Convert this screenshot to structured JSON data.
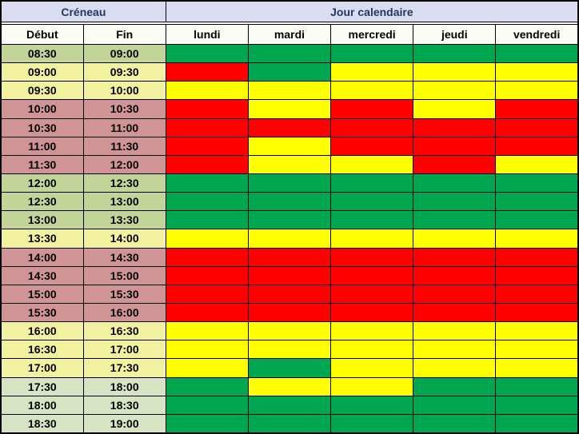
{
  "header": {
    "creneau": "Créneau",
    "jour": "Jour calendaire",
    "debut": "Début",
    "fin": "Fin"
  },
  "palette": {
    "green": "#00a650",
    "yellow": "#ffff00",
    "red": "#ff0000",
    "slot_green": "#c2d498",
    "slot_pale_green": "#d7e4c3",
    "slot_yellow": "#f2f1a0",
    "slot_pink": "#d09494",
    "header_bg": "#dadcf2",
    "header_text": "#1f3864",
    "subheader_bg": "#fbfdf5",
    "grid_line": "#000000"
  },
  "chart_data": {
    "type": "heatmap",
    "title": "Jour calendaire / Créneau availability grid",
    "x_labels": [
      "lundi",
      "mardi",
      "mercredi",
      "jeudi",
      "vendredi"
    ],
    "y_axis": "time slots of 30 minutes from 08:30 to 19:00",
    "legend_position": "none",
    "grid": true,
    "rows": [
      {
        "start": "08:30",
        "end": "09:00",
        "slot": "green",
        "days": [
          "green",
          "green",
          "green",
          "green",
          "green"
        ]
      },
      {
        "start": "09:00",
        "end": "09:30",
        "slot": "yellow",
        "days": [
          "red",
          "green",
          "yellow",
          "yellow",
          "yellow"
        ]
      },
      {
        "start": "09:30",
        "end": "10:00",
        "slot": "yellow",
        "days": [
          "yellow",
          "yellow",
          "yellow",
          "yellow",
          "yellow"
        ]
      },
      {
        "start": "10:00",
        "end": "10:30",
        "slot": "pink",
        "days": [
          "red",
          "yellow",
          "red",
          "yellow",
          "red"
        ]
      },
      {
        "start": "10:30",
        "end": "11:00",
        "slot": "pink",
        "days": [
          "red",
          "red",
          "red",
          "red",
          "red"
        ]
      },
      {
        "start": "11:00",
        "end": "11:30",
        "slot": "pink",
        "days": [
          "red",
          "yellow",
          "red",
          "red",
          "red"
        ]
      },
      {
        "start": "11:30",
        "end": "12:00",
        "slot": "pink",
        "days": [
          "red",
          "yellow",
          "yellow",
          "red",
          "yellow"
        ]
      },
      {
        "start": "12:00",
        "end": "12:30",
        "slot": "green",
        "days": [
          "green",
          "green",
          "green",
          "green",
          "green"
        ]
      },
      {
        "start": "12:30",
        "end": "13:00",
        "slot": "green",
        "days": [
          "green",
          "green",
          "green",
          "green",
          "green"
        ]
      },
      {
        "start": "13:00",
        "end": "13:30",
        "slot": "green",
        "days": [
          "green",
          "green",
          "green",
          "green",
          "green"
        ]
      },
      {
        "start": "13:30",
        "end": "14:00",
        "slot": "yellow",
        "days": [
          "yellow",
          "yellow",
          "yellow",
          "yellow",
          "yellow"
        ]
      },
      {
        "start": "14:00",
        "end": "14:30",
        "slot": "pink",
        "days": [
          "red",
          "red",
          "red",
          "red",
          "red"
        ]
      },
      {
        "start": "14:30",
        "end": "15:00",
        "slot": "pink",
        "days": [
          "red",
          "red",
          "red",
          "red",
          "red"
        ]
      },
      {
        "start": "15:00",
        "end": "15:30",
        "slot": "pink",
        "days": [
          "red",
          "red",
          "red",
          "red",
          "red"
        ]
      },
      {
        "start": "15:30",
        "end": "16:00",
        "slot": "pink",
        "days": [
          "red",
          "red",
          "red",
          "red",
          "red"
        ]
      },
      {
        "start": "16:00",
        "end": "16:30",
        "slot": "yellow",
        "days": [
          "yellow",
          "yellow",
          "yellow",
          "yellow",
          "yellow"
        ]
      },
      {
        "start": "16:30",
        "end": "17:00",
        "slot": "yellow",
        "days": [
          "yellow",
          "yellow",
          "yellow",
          "yellow",
          "yellow"
        ]
      },
      {
        "start": "17:00",
        "end": "17:30",
        "slot": "yellow",
        "days": [
          "yellow",
          "green",
          "yellow",
          "yellow",
          "yellow"
        ]
      },
      {
        "start": "17:30",
        "end": "18:00",
        "slot": "pale_green",
        "days": [
          "green",
          "yellow",
          "yellow",
          "green",
          "green"
        ]
      },
      {
        "start": "18:00",
        "end": "18:30",
        "slot": "pale_green",
        "days": [
          "green",
          "green",
          "green",
          "green",
          "green"
        ]
      },
      {
        "start": "18:30",
        "end": "19:00",
        "slot": "pale_green",
        "days": [
          "green",
          "green",
          "green",
          "green",
          "green"
        ]
      }
    ]
  }
}
